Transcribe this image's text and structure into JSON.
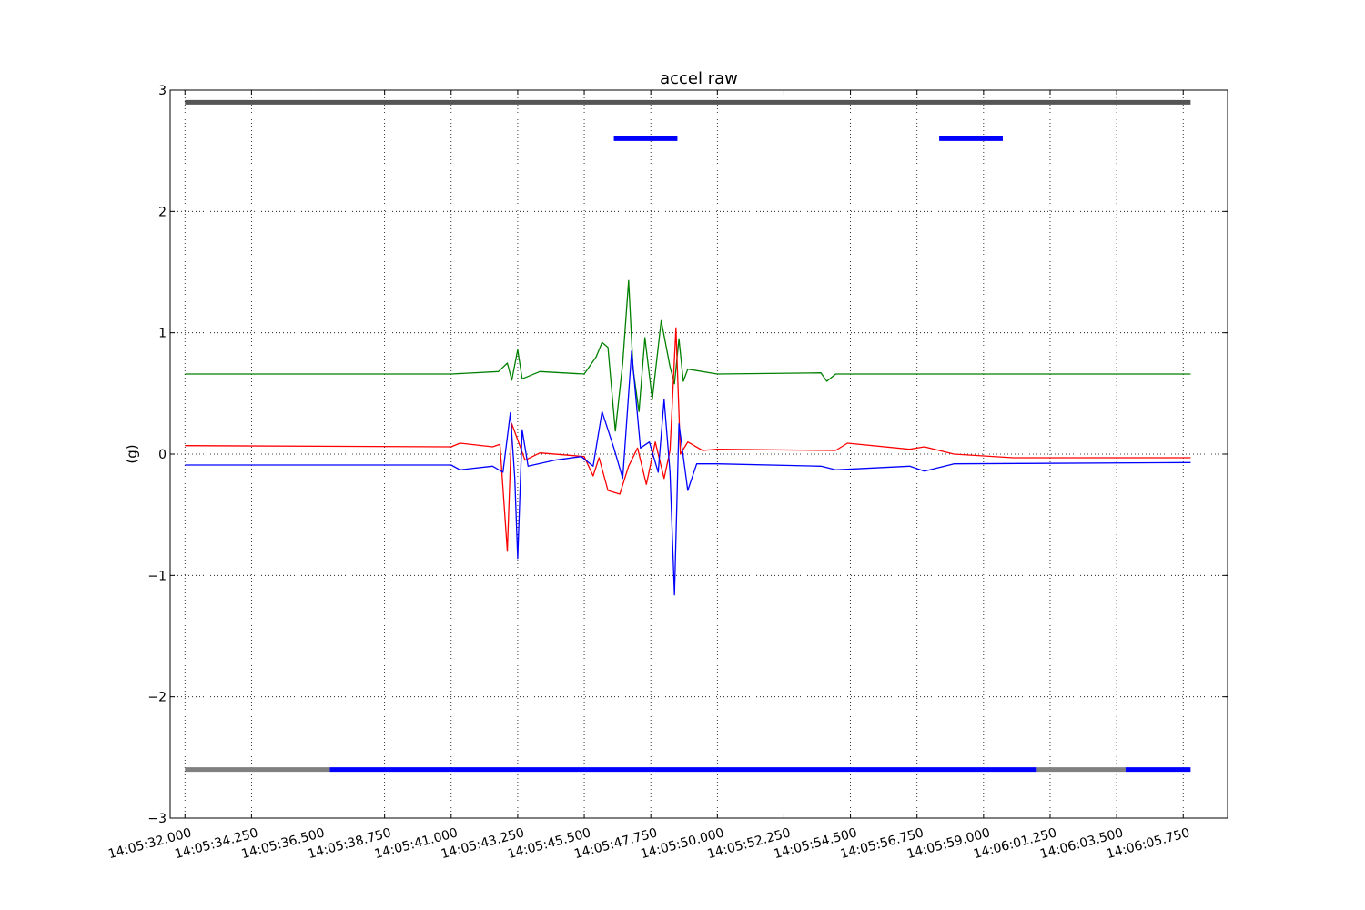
{
  "chart_data": {
    "type": "line",
    "title": "accel raw",
    "xlabel": "",
    "ylabel": "(g)",
    "ylim": [
      -3,
      3
    ],
    "xlim": [
      "14:05:31.500",
      "14:06:07.250"
    ],
    "x_tick_labels": [
      "14:05:32.000",
      "14:05:34.250",
      "14:05:36.500",
      "14:05:38.750",
      "14:05:41.000",
      "14:05:43.250",
      "14:05:45.500",
      "14:05:47.750",
      "14:05:50.000",
      "14:05:52.250",
      "14:05:54.500",
      "14:05:56.750",
      "14:05:59.000",
      "14:06:01.250",
      "14:06:03.500",
      "14:06:05.750"
    ],
    "y_tick_labels": [
      "3",
      "2",
      "1",
      "0",
      "−1",
      "−2",
      "−3"
    ],
    "grid": true,
    "legend": "none",
    "series": [
      {
        "color": "#008000",
        "points": [
          [
            "14:05:32.000",
            0.66
          ],
          [
            "14:05:41.000",
            0.66
          ],
          [
            "14:05:42.600",
            0.68
          ],
          [
            "14:05:42.900",
            0.75
          ],
          [
            "14:05:43.050",
            0.61
          ],
          [
            "14:05:43.250",
            0.86
          ],
          [
            "14:05:43.400",
            0.62
          ],
          [
            "14:05:44.000",
            0.68
          ],
          [
            "14:05:45.500",
            0.66
          ],
          [
            "14:05:45.900",
            0.8
          ],
          [
            "14:05:46.100",
            0.92
          ],
          [
            "14:05:46.300",
            0.88
          ],
          [
            "14:05:46.550",
            0.19
          ],
          [
            "14:05:46.800",
            0.75
          ],
          [
            "14:05:47.000",
            1.43
          ],
          [
            "14:05:47.150",
            0.7
          ],
          [
            "14:05:47.350",
            0.35
          ],
          [
            "14:05:47.550",
            0.96
          ],
          [
            "14:05:47.800",
            0.45
          ],
          [
            "14:05:48.100",
            1.1
          ],
          [
            "14:05:48.400",
            0.72
          ],
          [
            "14:05:48.550",
            0.58
          ],
          [
            "14:05:48.700",
            0.95
          ],
          [
            "14:05:48.850",
            0.6
          ],
          [
            "14:05:49.000",
            0.7
          ],
          [
            "14:05:50.000",
            0.66
          ],
          [
            "14:05:53.500",
            0.67
          ],
          [
            "14:05:53.700",
            0.6
          ],
          [
            "14:05:54.000",
            0.66
          ],
          [
            "14:06:06.000",
            0.66
          ]
        ]
      },
      {
        "color": "#ff0000",
        "points": [
          [
            "14:05:32.000",
            0.07
          ],
          [
            "14:05:41.000",
            0.06
          ],
          [
            "14:05:41.300",
            0.09
          ],
          [
            "14:05:42.400",
            0.06
          ],
          [
            "14:05:42.650",
            0.08
          ],
          [
            "14:05:42.900",
            -0.8
          ],
          [
            "14:05:43.050",
            0.25
          ],
          [
            "14:05:43.200",
            0.15
          ],
          [
            "14:05:43.500",
            -0.05
          ],
          [
            "14:05:44.000",
            0.01
          ],
          [
            "14:05:45.000",
            -0.01
          ],
          [
            "14:05:45.500",
            -0.02
          ],
          [
            "14:05:45.800",
            -0.18
          ],
          [
            "14:05:46.000",
            -0.03
          ],
          [
            "14:05:46.300",
            -0.3
          ],
          [
            "14:05:46.700",
            -0.33
          ],
          [
            "14:05:47.000",
            -0.1
          ],
          [
            "14:05:47.300",
            0.05
          ],
          [
            "14:05:47.600",
            -0.25
          ],
          [
            "14:05:47.900",
            0.1
          ],
          [
            "14:05:48.200",
            -0.2
          ],
          [
            "14:05:48.400",
            0.03
          ],
          [
            "14:05:48.600",
            1.04
          ],
          [
            "14:05:48.750",
            0.0
          ],
          [
            "14:05:49.000",
            0.1
          ],
          [
            "14:05:49.500",
            0.03
          ],
          [
            "14:05:50.000",
            0.04
          ],
          [
            "14:05:54.000",
            0.03
          ],
          [
            "14:05:54.400",
            0.09
          ],
          [
            "14:05:56.500",
            0.04
          ],
          [
            "14:05:57.000",
            0.06
          ],
          [
            "14:05:58.000",
            0.0
          ],
          [
            "14:06:00.000",
            -0.03
          ],
          [
            "14:06:06.000",
            -0.03
          ]
        ]
      },
      {
        "color": "#0000ff",
        "points": [
          [
            "14:05:32.000",
            -0.09
          ],
          [
            "14:05:41.000",
            -0.09
          ],
          [
            "14:05:41.300",
            -0.13
          ],
          [
            "14:05:42.400",
            -0.1
          ],
          [
            "14:05:42.750",
            -0.15
          ],
          [
            "14:05:43.000",
            0.34
          ],
          [
            "14:05:43.150",
            -0.2
          ],
          [
            "14:05:43.250",
            -0.86
          ],
          [
            "14:05:43.400",
            0.2
          ],
          [
            "14:05:43.600",
            -0.1
          ],
          [
            "14:05:44.500",
            -0.05
          ],
          [
            "14:05:45.400",
            -0.02
          ],
          [
            "14:05:45.800",
            -0.1
          ],
          [
            "14:05:46.100",
            0.35
          ],
          [
            "14:05:46.500",
            0.05
          ],
          [
            "14:05:46.800",
            -0.2
          ],
          [
            "14:05:47.100",
            0.85
          ],
          [
            "14:05:47.400",
            0.05
          ],
          [
            "14:05:47.700",
            0.1
          ],
          [
            "14:05:48.000",
            -0.15
          ],
          [
            "14:05:48.200",
            0.45
          ],
          [
            "14:05:48.400",
            -0.15
          ],
          [
            "14:05:48.550",
            -1.16
          ],
          [
            "14:05:48.700",
            0.25
          ],
          [
            "14:05:49.000",
            -0.3
          ],
          [
            "14:05:49.300",
            -0.08
          ],
          [
            "14:05:50.000",
            -0.08
          ],
          [
            "14:05:53.500",
            -0.1
          ],
          [
            "14:05:54.000",
            -0.13
          ],
          [
            "14:05:56.500",
            -0.1
          ],
          [
            "14:05:57.000",
            -0.14
          ],
          [
            "14:05:58.000",
            -0.08
          ],
          [
            "14:06:06.000",
            -0.07
          ]
        ]
      }
    ],
    "bands": [
      {
        "color": "#555555",
        "y": 2.9,
        "segments": [
          [
            "14:05:32.000",
            "14:06:06.000"
          ]
        ]
      },
      {
        "color": "#0000ff",
        "y": 2.6,
        "segments": [
          [
            "14:05:46.500",
            "14:05:48.650"
          ],
          [
            "14:05:57.500",
            "14:05:59.650"
          ]
        ]
      },
      {
        "color": "#808080",
        "y": -2.6,
        "segments": [
          [
            "14:05:32.000",
            "14:05:36.900"
          ],
          [
            "14:06:00.800",
            "14:06:03.800"
          ]
        ]
      },
      {
        "color": "#0000ff",
        "y": -2.6,
        "segments": [
          [
            "14:05:36.900",
            "14:06:00.800"
          ],
          [
            "14:06:03.800",
            "14:06:06.000"
          ]
        ]
      }
    ]
  }
}
